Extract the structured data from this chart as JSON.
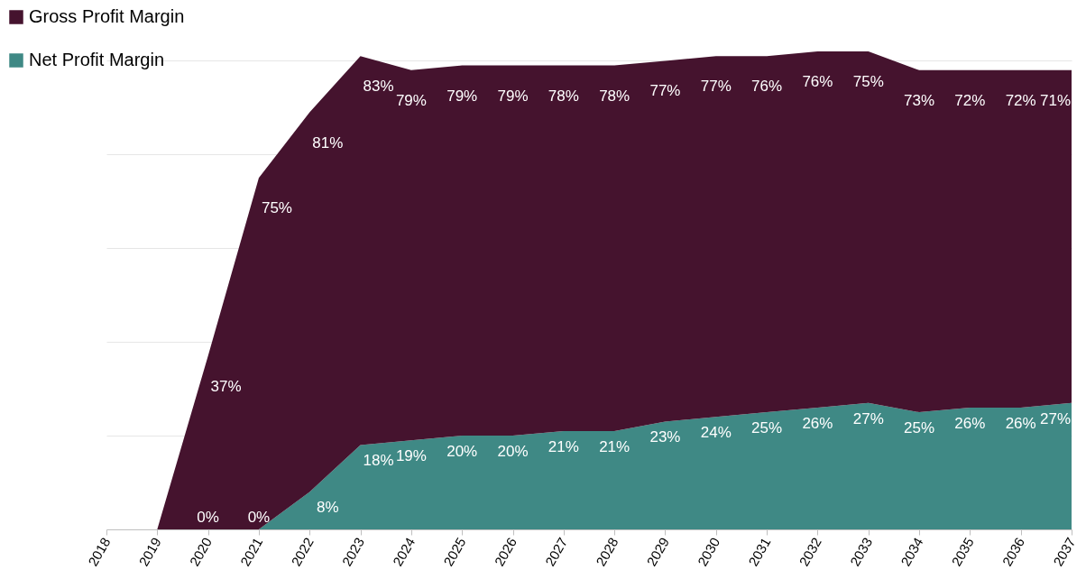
{
  "chart_data": {
    "type": "area",
    "stacked": true,
    "categories": [
      "2018",
      "2019",
      "2020",
      "2021",
      "2022",
      "2023",
      "2024",
      "2025",
      "2026",
      "2027",
      "2028",
      "2029",
      "2030",
      "2031",
      "2032",
      "2033",
      "2034",
      "2035",
      "2036",
      "2037"
    ],
    "series": [
      {
        "name": "Net Profit Margin",
        "color": "#3f8985",
        "values": [
          0,
          0,
          0,
          0,
          8,
          18,
          19,
          20,
          20,
          21,
          21,
          23,
          24,
          25,
          26,
          27,
          25,
          26,
          26,
          27
        ],
        "value_labels": [
          null,
          null,
          "0%",
          "0%",
          "8%",
          "18%",
          "19%",
          "20%",
          "20%",
          "21%",
          "21%",
          "23%",
          "24%",
          "25%",
          "26%",
          "27%",
          "25%",
          "26%",
          "26%",
          "27%"
        ]
      },
      {
        "name": "Gross Profit Margin",
        "color": "#45132e",
        "values": [
          0,
          0,
          37,
          75,
          81,
          83,
          79,
          79,
          79,
          78,
          78,
          77,
          77,
          76,
          76,
          75,
          73,
          72,
          72,
          71
        ],
        "value_labels": [
          null,
          null,
          "37%",
          "75%",
          "81%",
          "83%",
          "79%",
          "79%",
          "79%",
          "78%",
          "78%",
          "77%",
          "77%",
          "76%",
          "76%",
          "75%",
          "73%",
          "72%",
          "72%",
          "71%"
        ]
      }
    ],
    "yticks": [
      {
        "value": 0,
        "label": null
      },
      {
        "value": 20,
        "label": null
      },
      {
        "value": 40,
        "label": null
      },
      {
        "value": 60,
        "label": null
      },
      {
        "value": 80,
        "label": null
      },
      {
        "value": 100,
        "label": null
      }
    ],
    "grid": "y",
    "legend": "top left"
  }
}
